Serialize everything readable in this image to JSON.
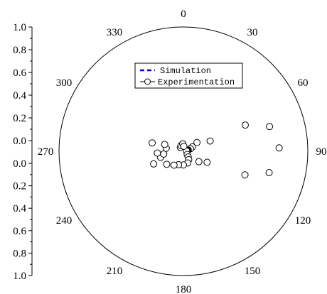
{
  "chart_data": {
    "type": "scatter",
    "coordinate_system": "polar",
    "angular_axis": {
      "zero_direction": "top",
      "direction": "clockwise",
      "tick_labels": [
        "0",
        "30",
        "60",
        "90",
        "120",
        "150",
        "180",
        "210",
        "240",
        "270",
        "300",
        "330"
      ],
      "tick_values": [
        0,
        30,
        60,
        90,
        120,
        150,
        180,
        210,
        240,
        270,
        300,
        330
      ]
    },
    "radial_axis": {
      "range": [
        0,
        1.0
      ],
      "upper_tick_labels": [
        "1.0",
        "0.8",
        "0.6",
        "0.4",
        "0.2",
        "0.0"
      ],
      "lower_tick_labels": [
        "0.0",
        "0.2",
        "0.4",
        "0.6",
        "0.8",
        "1.0"
      ]
    },
    "legend": {
      "placement": "top-center",
      "entries": [
        {
          "label": "Simulation",
          "style": "dashed-line",
          "color": "#0000cc"
        },
        {
          "label": "Experimentation",
          "style": "line-open-circle",
          "color": "#000000"
        }
      ]
    },
    "series": [
      {
        "name": "Simulation",
        "points": []
      },
      {
        "name": "Experimentation",
        "marker": "open-circle",
        "connected_indices": [
          0,
          1,
          2,
          3,
          4,
          5,
          6
        ],
        "points": [
          {
            "theta": 57,
            "r": 0.13
          },
          {
            "theta": 64,
            "r": 0.08
          },
          {
            "theta": 70,
            "r": 0.06
          },
          {
            "theta": 75,
            "r": 0.04
          },
          {
            "theta": 79,
            "r": 0.035
          },
          {
            "theta": 81,
            "r": 0.03
          },
          {
            "theta": 85,
            "r": 0.025
          },
          {
            "theta": 69,
            "r": 0.23
          },
          {
            "theta": 67,
            "r": 0.54
          },
          {
            "theta": 74,
            "r": 0.72
          },
          {
            "theta": 88,
            "r": 0.77
          },
          {
            "theta": 104,
            "r": 0.71
          },
          {
            "theta": 111,
            "r": 0.53
          },
          {
            "theta": 115,
            "r": 0.21
          },
          {
            "theta": 124,
            "r": 0.15
          },
          {
            "theta": 130,
            "r": 0.04
          },
          {
            "theta": 140,
            "r": 0.06
          },
          {
            "theta": 148,
            "r": 0.08
          },
          {
            "theta": 160,
            "r": 0.1
          },
          {
            "theta": 180,
            "r": 0.11
          },
          {
            "theta": 200,
            "r": 0.115
          },
          {
            "theta": 214,
            "r": 0.135
          },
          {
            "theta": 232,
            "r": 0.17
          },
          {
            "theta": 247,
            "r": 0.26
          },
          {
            "theta": 255,
            "r": 0.19
          },
          {
            "theta": 262,
            "r": 0.16
          },
          {
            "theta": 266,
            "r": 0.21
          },
          {
            "theta": 280,
            "r": 0.14
          },
          {
            "theta": 290,
            "r": 0.16
          },
          {
            "theta": 285,
            "r": 0.26
          },
          {
            "theta": 322,
            "r": 0.04
          },
          {
            "theta": 338,
            "r": 0.05
          },
          {
            "theta": 355,
            "r": 0.06
          },
          {
            "theta": 5,
            "r": 0.04
          }
        ]
      }
    ]
  }
}
